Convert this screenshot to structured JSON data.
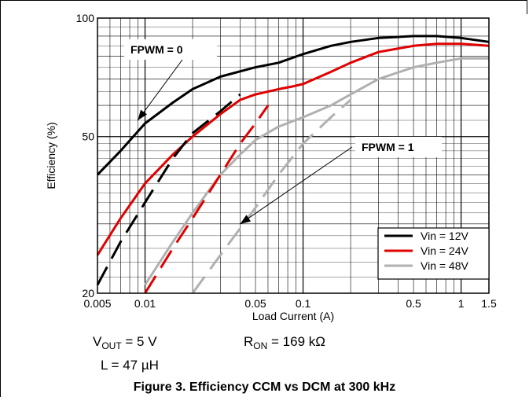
{
  "caption": "Figure 3. Efficiency CCM vs DCM at 300 kHz",
  "conditions": {
    "vout_main": "V",
    "vout_sub": "OUT",
    "vout_value": " = 5 V",
    "inductor": "L = 47 µH",
    "ron_main": "R",
    "ron_sub": "ON",
    "ron_value": " = 169 kΩ"
  },
  "chart_data": {
    "type": "line",
    "xscale": "log",
    "yscale": "log",
    "xlim": [
      0.005,
      1.5
    ],
    "ylim": [
      20,
      100
    ],
    "xlabel": "Load Current (A)",
    "ylabel": "Efficiency (%)",
    "x_ticks": [
      {
        "value": 0.005,
        "label": "0.005"
      },
      {
        "value": 0.01,
        "label": "0.01"
      },
      {
        "value": 0.05,
        "label": "0.05"
      },
      {
        "value": 0.1,
        "label": "0.1"
      },
      {
        "value": 0.5,
        "label": "0.5"
      },
      {
        "value": 1,
        "label": "1"
      },
      {
        "value": 1.5,
        "label": "1.5"
      }
    ],
    "y_ticks": [
      {
        "value": 20,
        "label": "20"
      },
      {
        "value": 50,
        "label": "50"
      },
      {
        "value": 100,
        "label": "100"
      }
    ],
    "grid": true,
    "legend_position": "bottom-right",
    "annotations": [
      {
        "text": "FPWM = 0",
        "arrow_to": [
          0.009,
          55
        ]
      },
      {
        "text": "FPWM = 1",
        "arrow_to": [
          0.04,
          30
        ]
      }
    ],
    "series": [
      {
        "name": "Vin = 12V",
        "color": "#000000",
        "dashed": false,
        "x": [
          0.005,
          0.007,
          0.01,
          0.015,
          0.02,
          0.03,
          0.05,
          0.07,
          0.1,
          0.15,
          0.2,
          0.3,
          0.5,
          0.7,
          1,
          1.5
        ],
        "y": [
          40,
          46,
          54,
          61,
          66,
          71,
          75,
          77,
          81,
          85,
          87,
          89,
          90,
          90,
          89,
          87
        ]
      },
      {
        "name": "Vin = 24V",
        "color": "#e00000",
        "dashed": false,
        "x": [
          0.005,
          0.007,
          0.01,
          0.015,
          0.02,
          0.03,
          0.04,
          0.05,
          0.07,
          0.085,
          0.1,
          0.15,
          0.2,
          0.3,
          0.5,
          0.7,
          1,
          1.5
        ],
        "y": [
          25,
          31,
          38,
          45,
          50,
          57,
          62,
          64,
          66,
          67,
          68,
          73,
          77,
          82,
          85,
          86,
          86,
          85
        ]
      },
      {
        "name": "Vin = 48V",
        "color": "#b0b0b0",
        "dashed": false,
        "x": [
          0.01,
          0.015,
          0.02,
          0.03,
          0.04,
          0.05,
          0.07,
          0.1,
          0.15,
          0.2,
          0.3,
          0.5,
          0.7,
          1,
          1.5
        ],
        "y": [
          21,
          27,
          32,
          40,
          45,
          49,
          53,
          56,
          60,
          64,
          70,
          75,
          77,
          79,
          79
        ]
      },
      {
        "name": "Vin = 12V FPWM = 1",
        "color": "#000000",
        "dashed": true,
        "x": [
          0.005,
          0.007,
          0.01,
          0.015,
          0.02,
          0.03,
          0.04
        ],
        "y": [
          21,
          27,
          34,
          44,
          51,
          58,
          64
        ]
      },
      {
        "name": "Vin = 24V FPWM = 1",
        "color": "#e00000",
        "dashed": true,
        "x": [
          0.01,
          0.015,
          0.02,
          0.03,
          0.04,
          0.05,
          0.06
        ],
        "y": [
          20,
          26,
          31,
          40,
          48,
          54,
          60
        ]
      },
      {
        "name": "Vin = 48V FPWM = 1",
        "color": "#b0b0b0",
        "dashed": true,
        "x": [
          0.02,
          0.03,
          0.05,
          0.07,
          0.1,
          0.15,
          0.2
        ],
        "y": [
          20,
          25,
          33,
          40,
          48,
          56,
          62
        ]
      }
    ]
  }
}
